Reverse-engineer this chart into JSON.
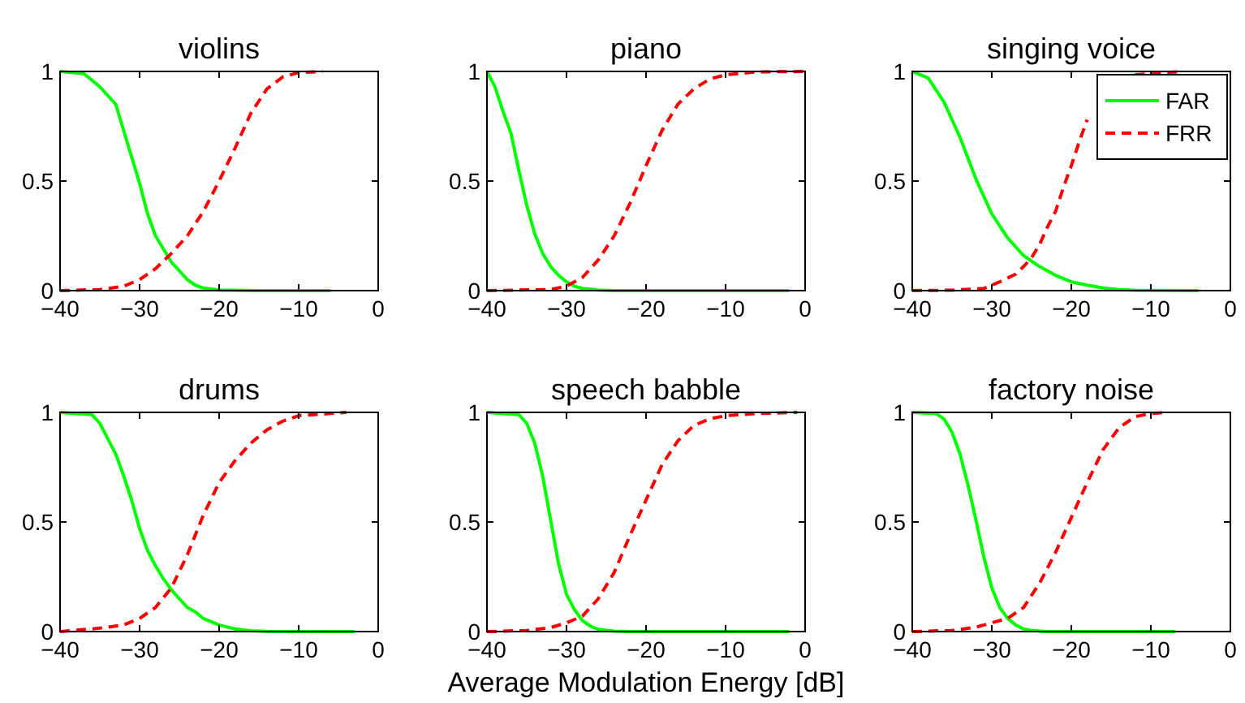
{
  "chart_data": [
    {
      "type": "line",
      "title": "violins",
      "xlim": [
        -40,
        0
      ],
      "ylim": [
        0,
        1
      ],
      "xticks": [
        {
          "value": -40,
          "label": "−40"
        },
        {
          "value": -30,
          "label": "−30"
        },
        {
          "value": -20,
          "label": "−20"
        },
        {
          "value": -10,
          "label": "−10"
        },
        {
          "value": 0,
          "label": "0"
        }
      ],
      "yticks": [
        0,
        0.5,
        1
      ],
      "series": [
        {
          "color": "#00ff00",
          "line_style": "solid",
          "x": [
            -40,
            -37,
            -35,
            -33,
            -31,
            -30,
            -29,
            -28,
            -27,
            -26,
            -25,
            -24,
            -23,
            -22,
            -20,
            -15,
            -6
          ],
          "values": [
            1,
            0.99,
            0.93,
            0.85,
            0.61,
            0.49,
            0.35,
            0.25,
            0.19,
            0.13,
            0.09,
            0.05,
            0.025,
            0.012,
            0.003,
            0,
            0
          ]
        },
        {
          "color": "#ff0000",
          "line_style": "dashed",
          "x": [
            -40,
            -35,
            -32,
            -30,
            -28,
            -26,
            -24,
            -22,
            -20,
            -18,
            -16,
            -14,
            -12,
            -10,
            -7
          ],
          "values": [
            0,
            0.005,
            0.02,
            0.05,
            0.1,
            0.17,
            0.25,
            0.36,
            0.5,
            0.65,
            0.81,
            0.92,
            0.975,
            0.995,
            1
          ]
        }
      ]
    },
    {
      "type": "line",
      "title": "piano",
      "xlim": [
        -40,
        0
      ],
      "ylim": [
        0,
        1
      ],
      "xticks": [
        {
          "value": -40,
          "label": "−40"
        },
        {
          "value": -30,
          "label": "−30"
        },
        {
          "value": -20,
          "label": "−20"
        },
        {
          "value": -10,
          "label": "−10"
        },
        {
          "value": 0,
          "label": "0"
        }
      ],
      "yticks": [
        0,
        0.5,
        1
      ],
      "series": [
        {
          "color": "#00ff00",
          "line_style": "solid",
          "x": [
            -40,
            -39,
            -38,
            -37,
            -36,
            -35,
            -34,
            -33,
            -32,
            -31,
            -30,
            -29,
            -28,
            -26,
            -24,
            -2
          ],
          "values": [
            1,
            0.93,
            0.82,
            0.72,
            0.55,
            0.39,
            0.26,
            0.17,
            0.11,
            0.07,
            0.04,
            0.02,
            0.01,
            0.003,
            0,
            0
          ]
        },
        {
          "color": "#ff0000",
          "line_style": "dashed",
          "x": [
            -40,
            -32,
            -30,
            -28,
            -26,
            -24,
            -22,
            -20,
            -18,
            -16,
            -14,
            -12,
            -10,
            -6,
            0
          ],
          "values": [
            0,
            0.005,
            0.02,
            0.06,
            0.14,
            0.25,
            0.4,
            0.57,
            0.73,
            0.85,
            0.92,
            0.965,
            0.985,
            0.998,
            1
          ]
        }
      ]
    },
    {
      "type": "line",
      "title": "singing voice",
      "legend": "top right",
      "xlim": [
        -40,
        0
      ],
      "ylim": [
        0,
        1
      ],
      "xticks": [
        {
          "value": -40,
          "label": "−40"
        },
        {
          "value": -30,
          "label": "−30"
        },
        {
          "value": -20,
          "label": "−20"
        },
        {
          "value": -10,
          "label": "−10"
        },
        {
          "value": 0,
          "label": "0"
        }
      ],
      "yticks": [
        0,
        0.5,
        1
      ],
      "series": [
        {
          "name": "FAR",
          "color": "#00ff00",
          "line_style": "solid",
          "x": [
            -40,
            -38,
            -36,
            -34,
            -32,
            -30,
            -28,
            -26,
            -24,
            -22,
            -20,
            -18,
            -16,
            -14,
            -12,
            -4
          ],
          "values": [
            1,
            0.97,
            0.86,
            0.7,
            0.51,
            0.35,
            0.24,
            0.16,
            0.11,
            0.07,
            0.04,
            0.025,
            0.012,
            0.005,
            0.002,
            0
          ]
        },
        {
          "name": "FRR",
          "color": "#ff0000",
          "line_style": "dashed",
          "x": [
            -40,
            -35,
            -31,
            -29,
            -27,
            -26,
            -25,
            -24,
            -23,
            -22,
            -21,
            -20,
            -19,
            -18,
            -16,
            -14,
            -12,
            -6
          ],
          "values": [
            0,
            0.002,
            0.01,
            0.04,
            0.075,
            0.11,
            0.15,
            0.21,
            0.29,
            0.36,
            0.47,
            0.57,
            0.68,
            0.78,
            null,
            null,
            0.985,
            1
          ]
        }
      ]
    },
    {
      "type": "line",
      "title": "drums",
      "xlim": [
        -40,
        0
      ],
      "ylim": [
        0,
        1
      ],
      "xticks": [
        {
          "value": -40,
          "label": "−40"
        },
        {
          "value": -30,
          "label": "−30"
        },
        {
          "value": -20,
          "label": "−20"
        },
        {
          "value": -10,
          "label": "−10"
        },
        {
          "value": 0,
          "label": "0"
        }
      ],
      "yticks": [
        0,
        0.5,
        1
      ],
      "series": [
        {
          "color": "#00ff00",
          "line_style": "solid",
          "x": [
            -40,
            -36,
            -35,
            -34,
            -33,
            -32,
            -31,
            -30,
            -29,
            -28,
            -27,
            -26,
            -25,
            -24,
            -23,
            -22,
            -21,
            -20,
            -18,
            -16,
            -14,
            -3
          ],
          "values": [
            1,
            0.99,
            0.95,
            0.88,
            0.81,
            0.71,
            0.6,
            0.47,
            0.37,
            0.3,
            0.24,
            0.19,
            0.15,
            0.11,
            0.09,
            0.06,
            0.045,
            0.03,
            0.012,
            0.004,
            0.001,
            0
          ]
        },
        {
          "color": "#ff0000",
          "line_style": "dashed",
          "x": [
            -40,
            -36,
            -34,
            -32,
            -30,
            -28,
            -26,
            -24,
            -22,
            -20,
            -18,
            -16,
            -14,
            -12,
            -10,
            -6,
            -4
          ],
          "values": [
            0,
            0.012,
            0.02,
            0.03,
            0.06,
            0.11,
            0.2,
            0.35,
            0.53,
            0.68,
            0.78,
            0.86,
            0.92,
            0.96,
            0.985,
            0.995,
            1
          ]
        }
      ]
    },
    {
      "type": "line",
      "title": "speech babble",
      "xlabel": "Average Modulation Energy [dB]",
      "xlim": [
        -40,
        0
      ],
      "ylim": [
        0,
        1
      ],
      "xticks": [
        {
          "value": -40,
          "label": "−40"
        },
        {
          "value": -30,
          "label": "−30"
        },
        {
          "value": -20,
          "label": "−20"
        },
        {
          "value": -10,
          "label": "−10"
        },
        {
          "value": 0,
          "label": "0"
        }
      ],
      "yticks": [
        0,
        0.5,
        1
      ],
      "series": [
        {
          "color": "#00ff00",
          "line_style": "solid",
          "x": [
            -40,
            -36,
            -35,
            -34,
            -33,
            -32,
            -31,
            -30,
            -29,
            -28,
            -27,
            -26,
            -24,
            -22,
            -2
          ],
          "values": [
            1,
            0.99,
            0.95,
            0.86,
            0.71,
            0.51,
            0.31,
            0.17,
            0.1,
            0.05,
            0.025,
            0.01,
            0.002,
            0,
            0
          ]
        },
        {
          "color": "#ff0000",
          "line_style": "dashed",
          "x": [
            -40,
            -35,
            -32,
            -30,
            -28,
            -26,
            -24,
            -22,
            -20,
            -18,
            -16,
            -14,
            -12,
            -10,
            -6,
            -1
          ],
          "values": [
            0,
            0.005,
            0.018,
            0.04,
            0.07,
            0.15,
            0.27,
            0.44,
            0.6,
            0.76,
            0.87,
            0.94,
            0.97,
            0.985,
            0.995,
            1
          ]
        }
      ]
    },
    {
      "type": "line",
      "title": "factory noise",
      "xlim": [
        -40,
        0
      ],
      "ylim": [
        0,
        1
      ],
      "xticks": [
        {
          "value": -40,
          "label": "−40"
        },
        {
          "value": -30,
          "label": "−30"
        },
        {
          "value": -20,
          "label": "−20"
        },
        {
          "value": -10,
          "label": "−10"
        },
        {
          "value": 0,
          "label": "0"
        }
      ],
      "yticks": [
        0,
        0.5,
        1
      ],
      "series": [
        {
          "color": "#00ff00",
          "line_style": "solid",
          "x": [
            -40,
            -37,
            -36,
            -35,
            -34,
            -33,
            -32,
            -31,
            -30,
            -29,
            -28,
            -27,
            -26,
            -25,
            -23,
            -7
          ],
          "values": [
            1,
            0.995,
            0.97,
            0.91,
            0.81,
            0.67,
            0.51,
            0.34,
            0.2,
            0.11,
            0.06,
            0.03,
            0.012,
            0.005,
            0,
            0
          ]
        },
        {
          "color": "#ff0000",
          "line_style": "dashed",
          "x": [
            -40,
            -35,
            -32,
            -30,
            -28,
            -26,
            -24,
            -22,
            -20,
            -18,
            -16,
            -14,
            -12,
            -10,
            -8
          ],
          "values": [
            0,
            0.005,
            0.02,
            0.04,
            0.06,
            0.11,
            0.22,
            0.36,
            0.52,
            0.68,
            0.83,
            0.93,
            0.98,
            0.995,
            1
          ]
        }
      ]
    }
  ]
}
